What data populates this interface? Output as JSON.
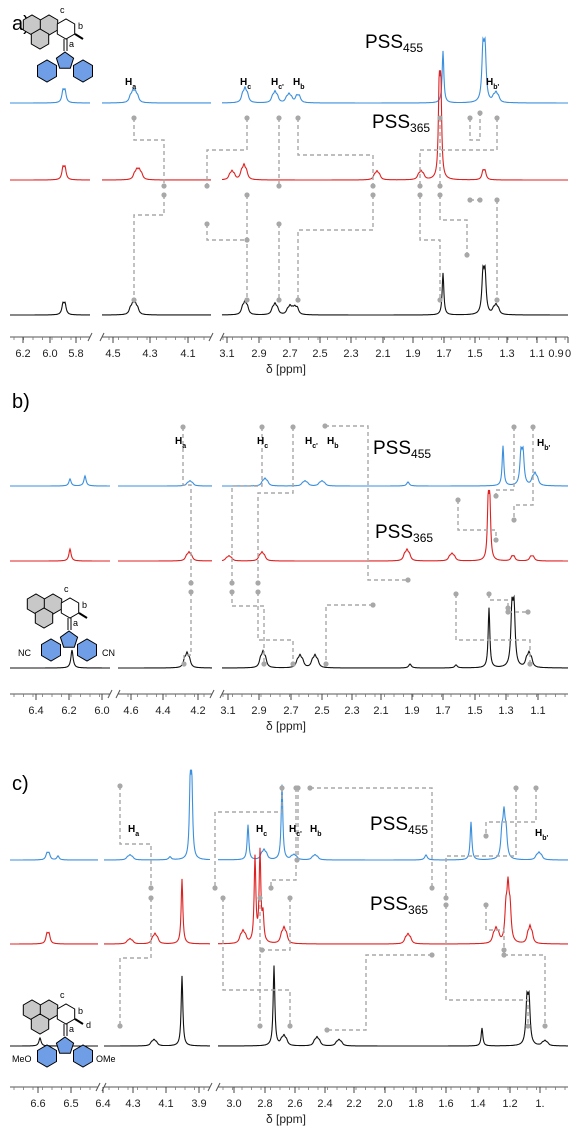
{
  "figure": {
    "domain_note": "",
    "colors": {
      "pss455": "#3a8fde",
      "pss365": "#e02020",
      "start": "#111111",
      "guide": "#a8a8a8",
      "fluorene": "#6f9ee6",
      "arene": "#c8c8c8"
    }
  },
  "chart_data": [
    {
      "type": "line",
      "panel": "a)",
      "xlabel": "δ [ppm]",
      "x_ticks": [
        "6.2",
        "6.0",
        "5.8",
        "4.5",
        "4.3",
        "4.1",
        "3.1",
        "2.9",
        "2.7",
        "2.5",
        "2.3",
        "2.1",
        "1.9",
        "1.7",
        "1.5",
        "1.3",
        "1.1",
        "0.9",
        "0"
      ],
      "series": [
        {
          "name": "PSS455",
          "label_main": "PSS",
          "label_sub": "455",
          "color": "#3a8fde"
        },
        {
          "name": "PSS365",
          "label_main": "PSS",
          "label_sub": "365",
          "color": "#e02020"
        },
        {
          "name": "",
          "color": "#111111"
        }
      ],
      "peak_labels": [
        {
          "main": "H",
          "sub": "a"
        },
        {
          "main": "H",
          "sub": "c"
        },
        {
          "main": "H",
          "sub": "c'"
        },
        {
          "main": "H",
          "sub": "b"
        },
        {
          "main": "H",
          "sub": "b'"
        }
      ],
      "molecule_labels": [
        "c",
        "b",
        "a"
      ]
    },
    {
      "type": "line",
      "panel": "b)",
      "xlabel": "δ [ppm]",
      "x_ticks": [
        "6.4",
        "6.2",
        "6.0",
        "4.6",
        "4.4",
        "4.2",
        "3.1",
        "2.9",
        "2.7",
        "2.5",
        "2.3",
        "2.1",
        "1.9",
        "1.7",
        "1.5",
        "1.3",
        "1.1"
      ],
      "series": [
        {
          "name": "PSS455",
          "label_main": "PSS",
          "label_sub": "455",
          "color": "#3a8fde"
        },
        {
          "name": "PSS365",
          "label_main": "PSS",
          "label_sub": "365",
          "color": "#e02020"
        },
        {
          "name": "",
          "color": "#111111"
        }
      ],
      "peak_labels": [
        {
          "main": "H",
          "sub": "a"
        },
        {
          "main": "H",
          "sub": "c"
        },
        {
          "main": "H",
          "sub": "c'"
        },
        {
          "main": "H",
          "sub": "b"
        },
        {
          "main": "H",
          "sub": "b'"
        }
      ],
      "molecule_labels": [
        "c",
        "b",
        "a",
        "NC",
        "CN"
      ]
    },
    {
      "type": "line",
      "panel": "c)",
      "xlabel": "δ [ppm]",
      "x_ticks": [
        "6.6",
        "6.5",
        "6.4",
        "4.3",
        "4.1",
        "3.9",
        "3.0",
        "2.8",
        "2.6",
        "2.4",
        "2.2",
        "2.0",
        "1.8",
        "1.6",
        "1.4",
        "1.2",
        "1."
      ],
      "series": [
        {
          "name": "PSS455",
          "label_main": "PSS",
          "label_sub": "455",
          "color": "#3a8fde"
        },
        {
          "name": "PSS365",
          "label_main": "PSS",
          "label_sub": "365",
          "color": "#e02020"
        },
        {
          "name": "",
          "color": "#111111"
        }
      ],
      "peak_labels": [
        {
          "main": "H",
          "sub": "a"
        },
        {
          "main": "H",
          "sub": "c"
        },
        {
          "main": "H",
          "sub": "c'"
        },
        {
          "main": "H",
          "sub": "b"
        },
        {
          "main": "H",
          "sub": "b'"
        }
      ],
      "molecule_labels": [
        "c",
        "b",
        "d",
        "a",
        "MeO",
        "OMe"
      ]
    }
  ]
}
